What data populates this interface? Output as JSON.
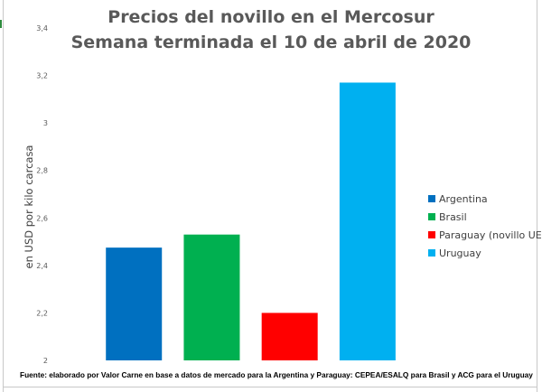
{
  "chart_data": {
    "type": "bar",
    "title": "Precios del novillo en el Mercosur",
    "subtitle": "Semana terminada el 10 de abril de 2020",
    "ylabel": "en USD por kilo carcasa",
    "xlabel": "",
    "ylim": [
      2,
      3.4
    ],
    "yticks": [
      "2",
      "2,2",
      "2,4",
      "2,6",
      "2,8",
      "3",
      "3,2",
      "3,4"
    ],
    "ytick_values": [
      2,
      2.2,
      2.4,
      2.6,
      2.8,
      3,
      3.2,
      3.4
    ],
    "grid": false,
    "legend_position": "right",
    "categories": [
      "Argentina",
      "Brasil",
      "Paraguay (novillo UE)",
      "Uruguay"
    ],
    "values": [
      2.475,
      2.53,
      2.2,
      3.17
    ],
    "colors": [
      "#0070c0",
      "#00b050",
      "#ff0000",
      "#00b0f0"
    ]
  },
  "footnote": "Fuente: elaborado por Valor Carne en base a datos de mercado para la Argentina y Paraguay: CEPEA/ESALQ para Brasil y ACG para el Uruguay"
}
